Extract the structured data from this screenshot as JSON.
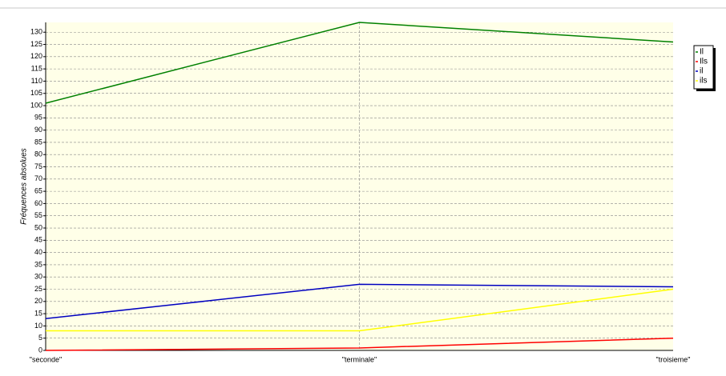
{
  "chart_data": {
    "type": "line",
    "y_label": "Fréquences absolues",
    "categories": [
      "\"seconde\"",
      "\"terminale\"",
      "\"troisieme\""
    ],
    "series": [
      {
        "name": "Il",
        "color": "#008000",
        "values": [
          101,
          134,
          126
        ]
      },
      {
        "name": "Ils",
        "color": "#ff0000",
        "values": [
          0,
          1,
          5
        ]
      },
      {
        "name": "il",
        "color": "#0000c0",
        "values": [
          13,
          27,
          26
        ]
      },
      {
        "name": "ils",
        "color": "#ffff00",
        "values": [
          8,
          8,
          25
        ]
      }
    ],
    "ylim": [
      0,
      134
    ],
    "yticks": [
      0,
      5,
      10,
      15,
      20,
      25,
      30,
      35,
      40,
      45,
      50,
      55,
      60,
      65,
      70,
      75,
      80,
      85,
      90,
      95,
      100,
      105,
      110,
      115,
      120,
      125,
      130
    ],
    "grid": true
  }
}
